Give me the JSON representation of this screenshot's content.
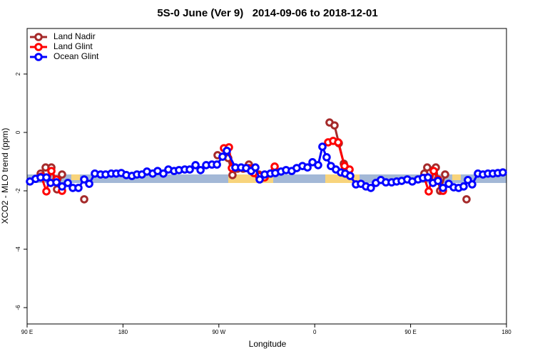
{
  "chart_data": {
    "type": "line",
    "title": "5S-0 June (Ver 9)   2014-09-06 to 2018-12-01",
    "xlabel": "Longitude",
    "ylabel": "XCO2 - MLO trend (ppm)",
    "xlim": [
      90,
      540
    ],
    "ylim": [
      -6.56,
      3.56
    ],
    "xticks": [
      {
        "value": 90,
        "label": "90 E"
      },
      180,
      {
        "value": 270,
        "label": "90 W"
      },
      {
        "value": 360,
        "label": "0"
      },
      {
        "value": 450,
        "label": "90 E"
      },
      {
        "value": 540,
        "label": "180"
      }
    ],
    "yticks": [
      -6,
      -4,
      -2,
      0,
      2
    ],
    "legend": "top-left",
    "series": [
      {
        "name": "Land Nadir",
        "color": "#a52a2a",
        "x": [
          102.7,
          107.4,
          112.8,
          118.1,
          122.8,
          null,
          143.6,
          null,
          268.8,
          278.8,
          282.8,
          287.5,
          292.9,
          298.2,
          302.9,
          307.6,
          312.3,
          null,
          373.9,
          378.6,
          382.6,
          387.3,
          392.0,
          null,
          462.9,
          465.6,
          473.7,
          477.7,
          482.4,
          null,
          502.5
        ],
        "values": [
          -1.41,
          -1.2,
          -1.2,
          -1.95,
          -1.44,
          null,
          -2.29,
          null,
          -0.78,
          -0.88,
          -1.46,
          -1.24,
          -1.24,
          -1.1,
          -1.37,
          -1.44,
          -1.51,
          null,
          0.34,
          0.24,
          -0.37,
          -1.07,
          -1.29,
          null,
          -1.41,
          -1.2,
          -1.2,
          -2.0,
          -1.44,
          null,
          -2.29
        ]
      },
      {
        "name": "Land Glint",
        "color": "#ff0000",
        "x": [
          103.4,
          108.1,
          112.8,
          117.5,
          122.8,
          null,
          274.8,
          279.5,
          282.2,
          298.2,
          302.9,
          307.6,
          313.0,
          322.4,
          null,
          372.6,
          377.3,
          382.0,
          388.0,
          392.7,
          null,
          463.0,
          467.0,
          471.7,
          475.7,
          480.4
        ],
        "values": [
          -1.51,
          -2.02,
          -1.32,
          -1.61,
          -2.0,
          null,
          -0.54,
          -0.51,
          -1.22,
          -1.22,
          -1.39,
          -1.49,
          -1.54,
          -1.17,
          null,
          -0.34,
          -0.29,
          -0.34,
          -1.15,
          -1.27,
          null,
          -1.56,
          -2.02,
          -1.32,
          -1.61,
          -2.0
        ]
      },
      {
        "name": "Ocean Glint",
        "color": "#0000ff",
        "x": [
          92.7,
          98.0,
          102.7,
          108.1,
          112.1,
          117.5,
          122.8,
          128.2,
          132.9,
          138.2,
          143.6,
          148.3,
          153.6,
          159.0,
          163.7,
          169.0,
          173.7,
          178.4,
          183.1,
          188.4,
          193.1,
          197.8,
          202.5,
          207.9,
          212.5,
          217.9,
          222.6,
          228.0,
          232.6,
          238.0,
          242.7,
          248.1,
          252.8,
          258.1,
          263.5,
          268.2,
          273.5,
          277.5,
          285.5,
          290.9,
          295.6,
          300.3,
          304.3,
          308.3,
          313.0,
          318.4,
          323.0,
          328.4,
          333.1,
          338.4,
          343.1,
          348.5,
          353.2,
          357.9,
          363.2,
          367.2,
          371.2,
          375.2,
          379.9,
          384.6,
          388.6,
          393.3,
          398.7,
          403.4,
          408.1,
          412.7,
          417.4,
          422.1,
          426.8,
          432.2,
          436.9,
          441.6,
          446.9,
          451.6,
          457.0,
          461.6,
          466.3,
          471.0,
          475.7,
          480.4,
          485.8,
          490.5,
          495.1,
          499.8,
          503.8,
          507.8,
          513.2,
          517.9,
          522.6,
          527.2,
          531.9,
          536.6
        ],
        "values": [
          -1.68,
          -1.59,
          -1.54,
          -1.54,
          -1.73,
          -1.71,
          -1.85,
          -1.73,
          -1.9,
          -1.9,
          -1.61,
          -1.76,
          -1.41,
          -1.44,
          -1.44,
          -1.41,
          -1.41,
          -1.39,
          -1.46,
          -1.49,
          -1.44,
          -1.44,
          -1.34,
          -1.41,
          -1.32,
          -1.41,
          -1.27,
          -1.32,
          -1.29,
          -1.27,
          -1.27,
          -1.12,
          -1.29,
          -1.12,
          -1.1,
          -1.1,
          -0.83,
          -0.63,
          -1.2,
          -1.2,
          -1.22,
          -1.32,
          -1.2,
          -1.61,
          -1.44,
          -1.41,
          -1.39,
          -1.34,
          -1.29,
          -1.32,
          -1.22,
          -1.15,
          -1.2,
          -1.02,
          -1.12,
          -0.49,
          -0.85,
          -1.15,
          -1.27,
          -1.37,
          -1.41,
          -1.49,
          -1.78,
          -1.76,
          -1.85,
          -1.9,
          -1.73,
          -1.63,
          -1.71,
          -1.71,
          -1.68,
          -1.66,
          -1.61,
          -1.68,
          -1.61,
          -1.56,
          -1.54,
          -1.73,
          -1.66,
          -1.9,
          -1.76,
          -1.88,
          -1.9,
          -1.85,
          -1.63,
          -1.78,
          -1.41,
          -1.44,
          -1.41,
          -1.41,
          -1.39,
          -1.37
        ]
      }
    ]
  }
}
